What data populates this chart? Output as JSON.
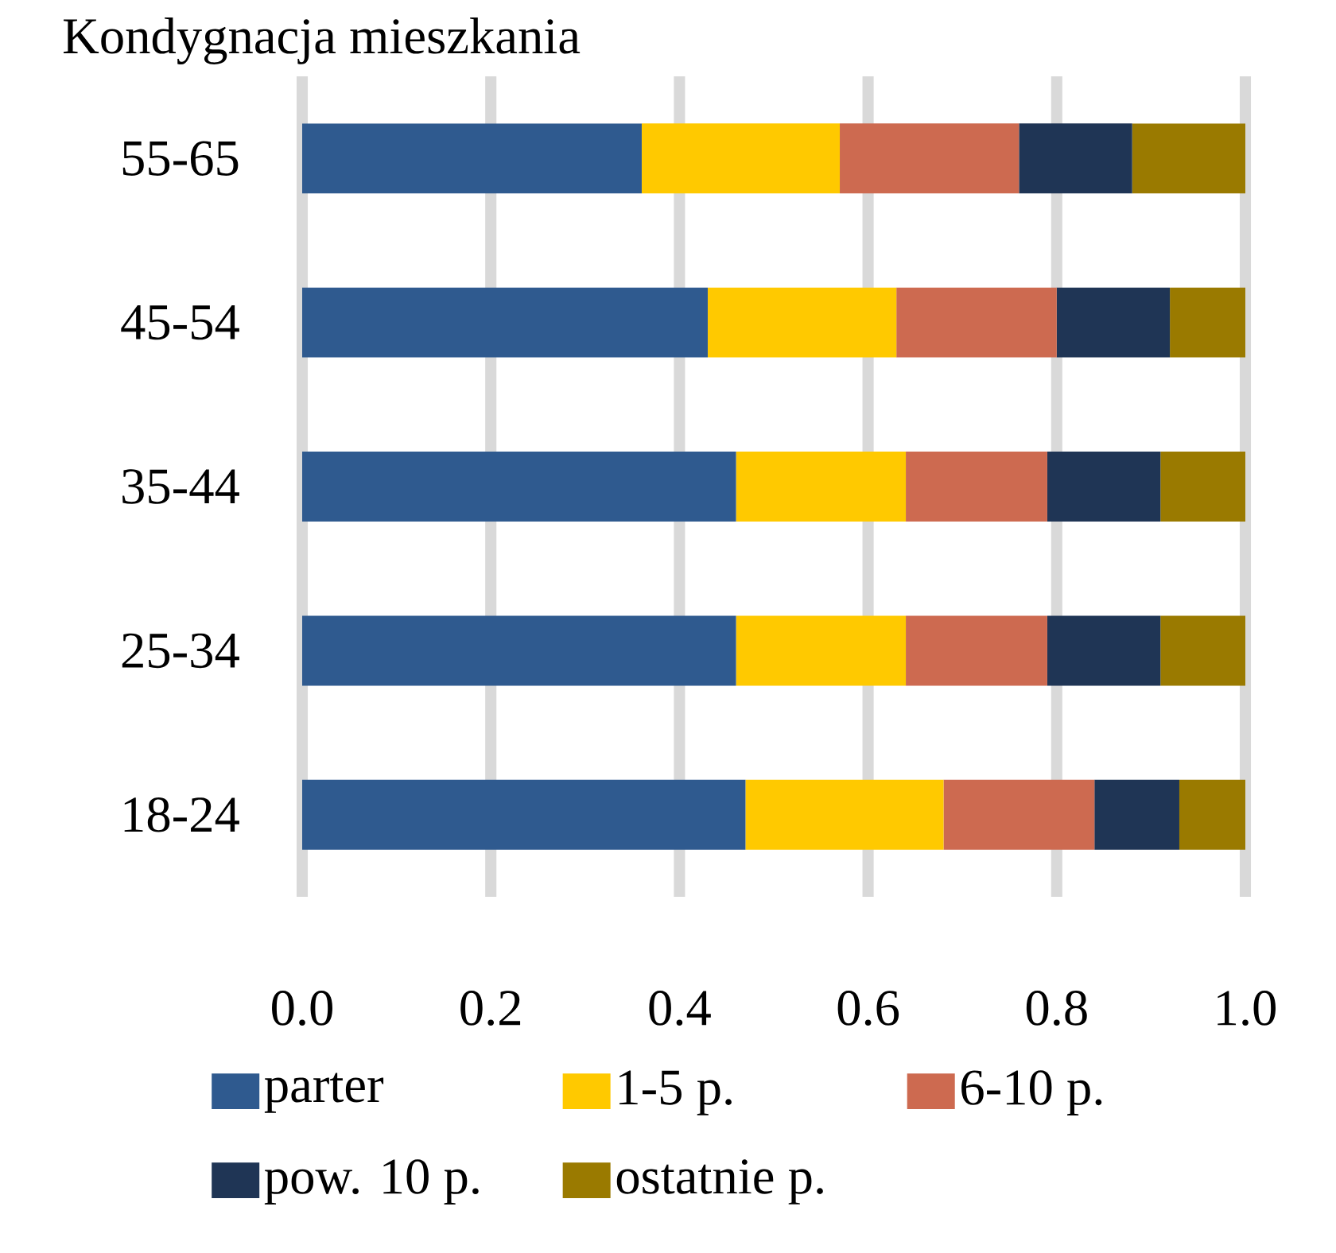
{
  "chart_data": {
    "type": "bar",
    "orientation": "horizontal",
    "stacked": true,
    "title": "Kondygnacja mieszkania",
    "categories": [
      "55-65",
      "45-54",
      "35-44",
      "25-34",
      "18-24"
    ],
    "series": [
      {
        "name": "parter",
        "color": "#2f5a8f",
        "values": [
          0.36,
          0.43,
          0.46,
          0.46,
          0.47
        ]
      },
      {
        "name": "1-5 p.",
        "color": "#ffc900",
        "values": [
          0.21,
          0.2,
          0.18,
          0.18,
          0.21
        ]
      },
      {
        "name": "6-10 p.",
        "color": "#cd6a50",
        "values": [
          0.19,
          0.17,
          0.15,
          0.15,
          0.16
        ]
      },
      {
        "name": "pow. 10 p.",
        "color": "#1f3555",
        "values": [
          0.12,
          0.12,
          0.12,
          0.12,
          0.09
        ]
      },
      {
        "name": "ostatnie p.",
        "color": "#9a7a00",
        "values": [
          0.12,
          0.08,
          0.09,
          0.09,
          0.07
        ]
      }
    ],
    "xlim": [
      0,
      1
    ],
    "xticks": [
      {
        "value": 0,
        "label": "0.0"
      },
      {
        "value": 0.2,
        "label": "0.2"
      },
      {
        "value": 0.4,
        "label": "0.4"
      },
      {
        "value": 0.6,
        "label": "0.6"
      },
      {
        "value": 0.8,
        "label": "0.8"
      },
      {
        "value": 1,
        "label": "1.0"
      }
    ],
    "grid": "x",
    "legend": "bottom"
  }
}
